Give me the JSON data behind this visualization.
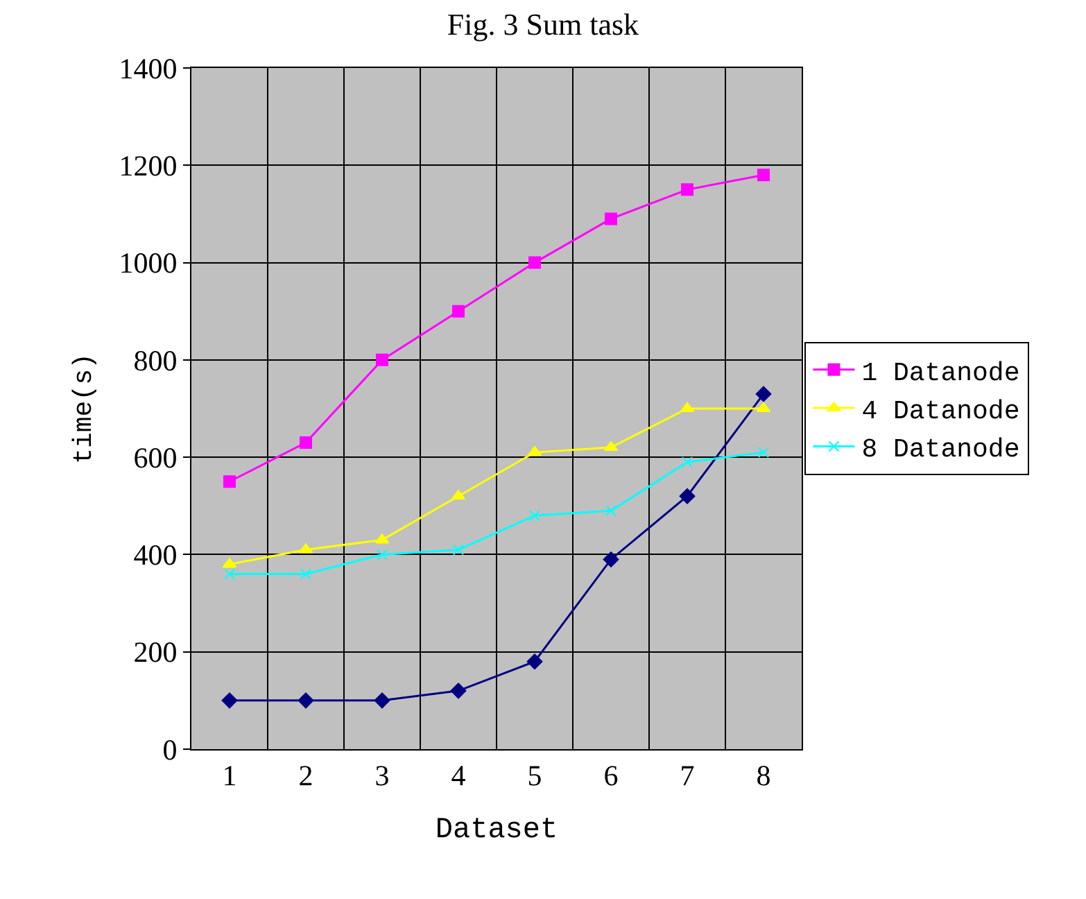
{
  "chart_data": {
    "type": "line",
    "title": "Fig. 3 Sum task",
    "xlabel": "Dataset",
    "ylabel": "time(s)",
    "categories": [
      "1",
      "2",
      "3",
      "4",
      "5",
      "6",
      "7",
      "8"
    ],
    "series": [
      {
        "color": "#000080",
        "marker": "diamond",
        "values": [
          100,
          100,
          100,
          120,
          180,
          390,
          520,
          730
        ]
      },
      {
        "name": "1 Datanode",
        "color": "#ff00ff",
        "marker": "square",
        "values": [
          550,
          630,
          800,
          900,
          1000,
          1090,
          1150,
          1180
        ]
      },
      {
        "name": "4 Datanode",
        "color": "#ffff00",
        "marker": "triangle",
        "values": [
          380,
          410,
          430,
          520,
          610,
          620,
          700,
          700
        ]
      },
      {
        "name": "8 Datanode",
        "color": "#00ffff",
        "marker": "cross",
        "values": [
          360,
          360,
          400,
          410,
          480,
          490,
          590,
          610
        ]
      }
    ],
    "ylim": [
      0,
      1400
    ],
    "yticks": [
      0,
      200,
      400,
      600,
      800,
      1000,
      1200,
      1400
    ],
    "grid": true,
    "legend": "right",
    "line_style": "solid"
  }
}
